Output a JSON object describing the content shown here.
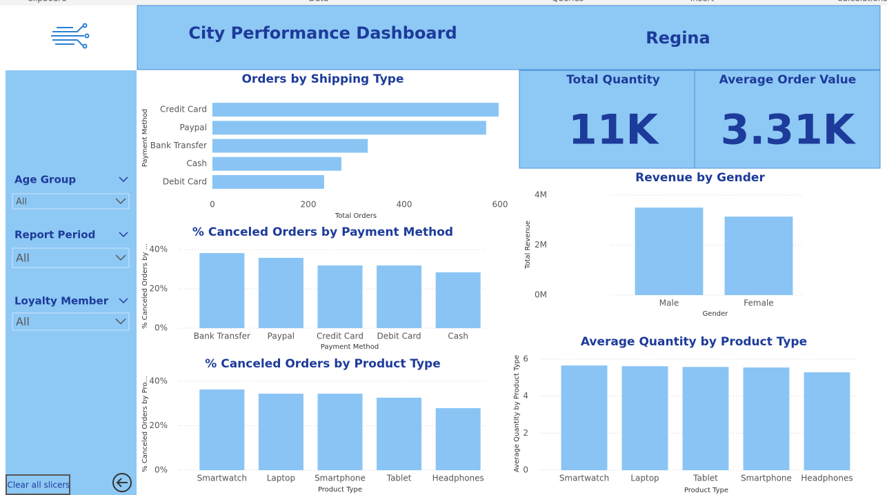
{
  "ribbon": [
    "Clipboard",
    "Data",
    "Queries",
    "Insert",
    "Calculations"
  ],
  "header": {
    "title": "City Performance Dashboard",
    "city": "Regina"
  },
  "kpis": [
    {
      "label": "Total Quantity",
      "value": "11K"
    },
    {
      "label": "Average Order Value",
      "value": "3.31K"
    }
  ],
  "slicers": [
    {
      "label": "Age Group",
      "value": "All"
    },
    {
      "label": "Report Period",
      "value": "All"
    },
    {
      "label": "Loyalty Member",
      "value": "All"
    }
  ],
  "clear_button": "Clear all slicers",
  "chart_data": [
    {
      "type": "hbar",
      "title": "Orders by Shipping Type",
      "xlabel": "Total Orders",
      "ylabel": "Payment Method",
      "categories": [
        "Credit Card",
        "Paypal",
        "Bank Transfer",
        "Cash",
        "Debit Card"
      ],
      "values": [
        597,
        571,
        324,
        269,
        233
      ],
      "color": "#89c4f4",
      "xlim": [
        0,
        600
      ],
      "xticks": [
        0,
        200,
        400,
        600
      ],
      "grid": false
    },
    {
      "type": "bar",
      "title": "% Canceled Orders by Payment Method",
      "xlabel": "Payment Method",
      "ylabel": "% Canceled Orders by ...",
      "categories": [
        "Bank Transfer",
        "Paypal",
        "Credit Card",
        "Debit Card",
        "Cash"
      ],
      "values": [
        38.2,
        35.8,
        31.9,
        31.9,
        28.4
      ],
      "color": "#89c4f4",
      "ylim": [
        0,
        40
      ],
      "yticks": [
        {
          "value": 0,
          "label": "0%"
        },
        {
          "value": 20,
          "label": "20%"
        },
        {
          "value": 40,
          "label": "40%"
        }
      ],
      "grid": true
    },
    {
      "type": "bar",
      "title": "% Canceled Orders by Product Type",
      "xlabel": "Product Type",
      "ylabel": "% Canceled Orders by Pro...",
      "categories": [
        "Smartwatch",
        "Laptop",
        "Smartphone",
        "Tablet",
        "Headphones"
      ],
      "values": [
        36.3,
        34.4,
        34.4,
        32.6,
        27.9
      ],
      "color": "#89c4f4",
      "ylim": [
        0,
        40
      ],
      "yticks": [
        {
          "value": 0,
          "label": "0%"
        },
        {
          "value": 20,
          "label": "20%"
        },
        {
          "value": 40,
          "label": "40%"
        }
      ],
      "grid": true
    },
    {
      "type": "bar",
      "title": "Revenue by Gender",
      "xlabel": "Gender",
      "ylabel": "Total Revenue",
      "categories": [
        "Male",
        "Female"
      ],
      "values": [
        3500000,
        3140000
      ],
      "color": "#89c4f4",
      "ylim": [
        0,
        4000000
      ],
      "yticks": [
        {
          "value": 0,
          "label": "0M"
        },
        {
          "value": 2000000,
          "label": "2M"
        },
        {
          "value": 4000000,
          "label": "4M"
        }
      ],
      "grid": true
    },
    {
      "type": "bar",
      "title": "Average Quantity by Product Type",
      "xlabel": "Product Type",
      "ylabel": "Average Quantity by Product Type",
      "categories": [
        "Smartwatch",
        "Laptop",
        "Tablet",
        "Smartphone",
        "Headphones"
      ],
      "values": [
        5.66,
        5.62,
        5.58,
        5.55,
        5.29
      ],
      "color": "#89c4f4",
      "ylim": [
        0,
        6
      ],
      "yticks": [
        0,
        2,
        4,
        6
      ],
      "grid": true
    }
  ]
}
